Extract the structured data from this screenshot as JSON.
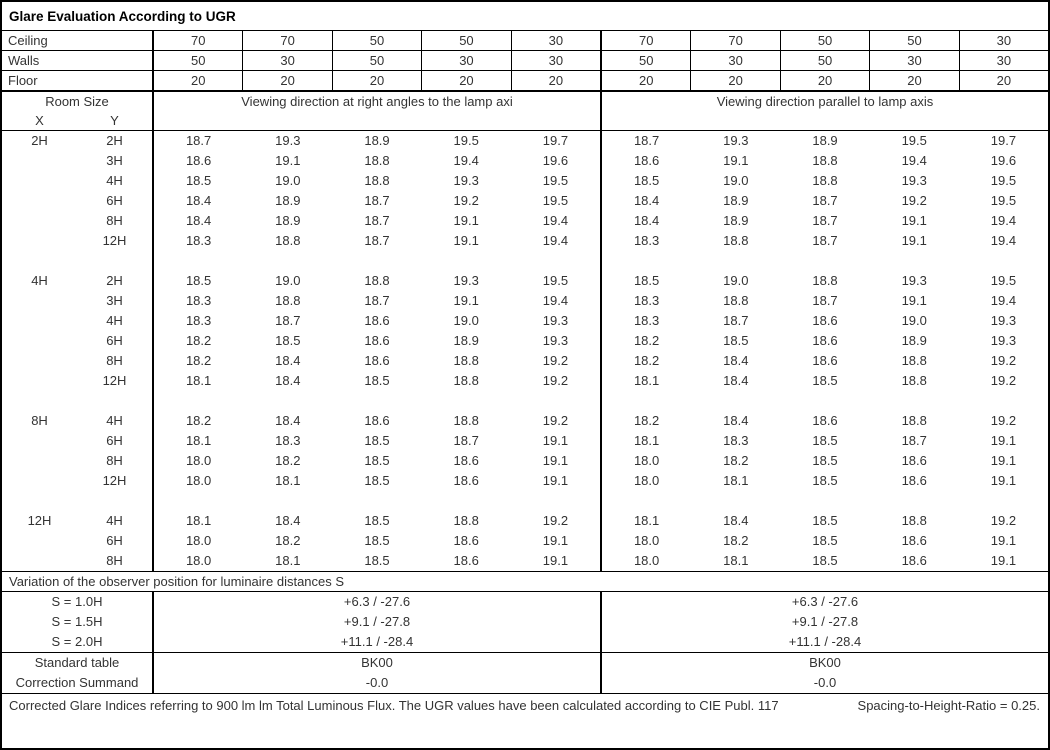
{
  "title": "Glare Evaluation According to UGR",
  "surfaces": {
    "rows": [
      {
        "label": "Ceiling",
        "values": [
          "70",
          "70",
          "50",
          "50",
          "30",
          "70",
          "70",
          "50",
          "50",
          "30"
        ]
      },
      {
        "label": "Walls",
        "values": [
          "50",
          "30",
          "50",
          "30",
          "30",
          "50",
          "30",
          "50",
          "30",
          "30"
        ]
      },
      {
        "label": "Floor",
        "values": [
          "20",
          "20",
          "20",
          "20",
          "20",
          "20",
          "20",
          "20",
          "20",
          "20"
        ]
      }
    ]
  },
  "header": {
    "room_size_label": "Room Size",
    "x_label": "X",
    "y_label": "Y",
    "left_title": "Viewing direction at right angles to the lamp axi",
    "right_title": "Viewing direction parallel to lamp axis"
  },
  "groups": [
    {
      "x": "2H",
      "rows": [
        {
          "y": "2H",
          "left": [
            "18.7",
            "19.3",
            "18.9",
            "19.5",
            "19.7"
          ],
          "right": [
            "18.7",
            "19.3",
            "18.9",
            "19.5",
            "19.7"
          ]
        },
        {
          "y": "3H",
          "left": [
            "18.6",
            "19.1",
            "18.8",
            "19.4",
            "19.6"
          ],
          "right": [
            "18.6",
            "19.1",
            "18.8",
            "19.4",
            "19.6"
          ]
        },
        {
          "y": "4H",
          "left": [
            "18.5",
            "19.0",
            "18.8",
            "19.3",
            "19.5"
          ],
          "right": [
            "18.5",
            "19.0",
            "18.8",
            "19.3",
            "19.5"
          ]
        },
        {
          "y": "6H",
          "left": [
            "18.4",
            "18.9",
            "18.7",
            "19.2",
            "19.5"
          ],
          "right": [
            "18.4",
            "18.9",
            "18.7",
            "19.2",
            "19.5"
          ]
        },
        {
          "y": "8H",
          "left": [
            "18.4",
            "18.9",
            "18.7",
            "19.1",
            "19.4"
          ],
          "right": [
            "18.4",
            "18.9",
            "18.7",
            "19.1",
            "19.4"
          ]
        },
        {
          "y": "12H",
          "left": [
            "18.3",
            "18.8",
            "18.7",
            "19.1",
            "19.4"
          ],
          "right": [
            "18.3",
            "18.8",
            "18.7",
            "19.1",
            "19.4"
          ]
        }
      ]
    },
    {
      "x": "4H",
      "rows": [
        {
          "y": "2H",
          "left": [
            "18.5",
            "19.0",
            "18.8",
            "19.3",
            "19.5"
          ],
          "right": [
            "18.5",
            "19.0",
            "18.8",
            "19.3",
            "19.5"
          ]
        },
        {
          "y": "3H",
          "left": [
            "18.3",
            "18.8",
            "18.7",
            "19.1",
            "19.4"
          ],
          "right": [
            "18.3",
            "18.8",
            "18.7",
            "19.1",
            "19.4"
          ]
        },
        {
          "y": "4H",
          "left": [
            "18.3",
            "18.7",
            "18.6",
            "19.0",
            "19.3"
          ],
          "right": [
            "18.3",
            "18.7",
            "18.6",
            "19.0",
            "19.3"
          ]
        },
        {
          "y": "6H",
          "left": [
            "18.2",
            "18.5",
            "18.6",
            "18.9",
            "19.3"
          ],
          "right": [
            "18.2",
            "18.5",
            "18.6",
            "18.9",
            "19.3"
          ]
        },
        {
          "y": "8H",
          "left": [
            "18.2",
            "18.4",
            "18.6",
            "18.8",
            "19.2"
          ],
          "right": [
            "18.2",
            "18.4",
            "18.6",
            "18.8",
            "19.2"
          ]
        },
        {
          "y": "12H",
          "left": [
            "18.1",
            "18.4",
            "18.5",
            "18.8",
            "19.2"
          ],
          "right": [
            "18.1",
            "18.4",
            "18.5",
            "18.8",
            "19.2"
          ]
        }
      ]
    },
    {
      "x": "8H",
      "rows": [
        {
          "y": "4H",
          "left": [
            "18.2",
            "18.4",
            "18.6",
            "18.8",
            "19.2"
          ],
          "right": [
            "18.2",
            "18.4",
            "18.6",
            "18.8",
            "19.2"
          ]
        },
        {
          "y": "6H",
          "left": [
            "18.1",
            "18.3",
            "18.5",
            "18.7",
            "19.1"
          ],
          "right": [
            "18.1",
            "18.3",
            "18.5",
            "18.7",
            "19.1"
          ]
        },
        {
          "y": "8H",
          "left": [
            "18.0",
            "18.2",
            "18.5",
            "18.6",
            "19.1"
          ],
          "right": [
            "18.0",
            "18.2",
            "18.5",
            "18.6",
            "19.1"
          ]
        },
        {
          "y": "12H",
          "left": [
            "18.0",
            "18.1",
            "18.5",
            "18.6",
            "19.1"
          ],
          "right": [
            "18.0",
            "18.1",
            "18.5",
            "18.6",
            "19.1"
          ]
        }
      ]
    },
    {
      "x": "12H",
      "rows": [
        {
          "y": "4H",
          "left": [
            "18.1",
            "18.4",
            "18.5",
            "18.8",
            "19.2"
          ],
          "right": [
            "18.1",
            "18.4",
            "18.5",
            "18.8",
            "19.2"
          ]
        },
        {
          "y": "6H",
          "left": [
            "18.0",
            "18.2",
            "18.5",
            "18.6",
            "19.1"
          ],
          "right": [
            "18.0",
            "18.2",
            "18.5",
            "18.6",
            "19.1"
          ]
        },
        {
          "y": "8H",
          "left": [
            "18.0",
            "18.1",
            "18.5",
            "18.6",
            "19.1"
          ],
          "right": [
            "18.0",
            "18.1",
            "18.5",
            "18.6",
            "19.1"
          ]
        }
      ]
    }
  ],
  "variation": {
    "title": "Variation of the observer position for luminaire distances S",
    "rows": [
      {
        "label": "S = 1.0H",
        "left": "+6.3 / -27.6",
        "right": "+6.3 / -27.6"
      },
      {
        "label": "S = 1.5H",
        "left": "+9.1 / -27.8",
        "right": "+9.1 / -27.8"
      },
      {
        "label": "S = 2.0H",
        "left": "+11.1 / -28.4",
        "right": "+11.1 / -28.4"
      }
    ]
  },
  "summary": {
    "rows": [
      {
        "label": "Standard table",
        "left": "BK00",
        "right": "BK00"
      },
      {
        "label": "Correction Summand",
        "left": "-0.0",
        "right": "-0.0"
      }
    ]
  },
  "footer": {
    "text": "Corrected Glare Indices referring to 900 lm lm Total Luminous Flux. The UGR values have been calculated according to CIE Publ. 117",
    "ratio": "Spacing-to-Height-Ratio = 0.25."
  }
}
